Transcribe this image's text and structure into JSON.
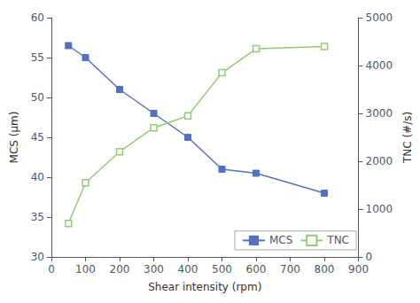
{
  "chart_data": {
    "type": "line",
    "x": [
      50,
      100,
      200,
      300,
      400,
      500,
      600,
      800
    ],
    "series": [
      {
        "name": "MCS",
        "values": [
          56.5,
          55.0,
          51.0,
          48.0,
          45.0,
          41.0,
          40.5,
          38.0
        ],
        "marker": "square"
      },
      {
        "name": "TNC",
        "values": [
          700,
          1550,
          2200,
          2700,
          2950,
          3850,
          4350,
          4400
        ],
        "marker": "square_open",
        "axis": "y2"
      }
    ],
    "xlabel": "Shear intensity (rpm)",
    "ylabel": "MCS (μm)",
    "y2label": "TNC (#/s)",
    "xlim": [
      0,
      900
    ],
    "xticks": [
      0,
      100,
      200,
      300,
      400,
      500,
      600,
      700,
      800,
      900
    ],
    "ylim": [
      30,
      60
    ],
    "yticks": [
      30,
      35,
      40,
      45,
      50,
      55,
      60
    ],
    "y2lim": [
      0,
      5000
    ],
    "y2ticks": [
      0,
      1000,
      2000,
      3000,
      4000,
      5000
    ],
    "legend": "lower right",
    "grid": false
  }
}
